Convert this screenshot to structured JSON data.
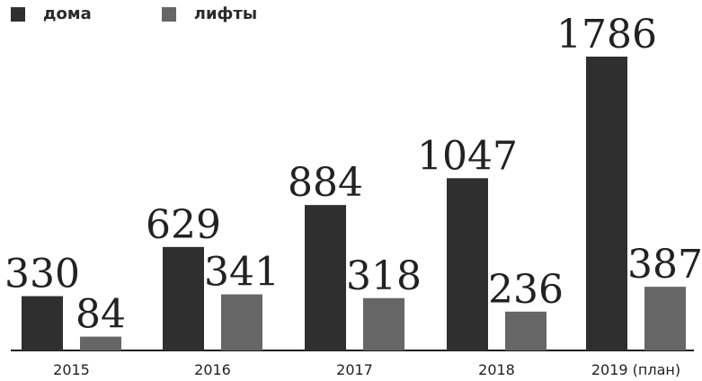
{
  "colors": {
    "houses": "#2f2f2f",
    "lifts": "#666666",
    "axis": "#1f1f1f",
    "text": "#222222"
  },
  "legend": {
    "items": [
      {
        "label": "дома",
        "color": "#2f2f2f"
      },
      {
        "label": "лифты",
        "color": "#666666"
      }
    ]
  },
  "chart_data": {
    "type": "bar",
    "categories": [
      "2015",
      "2016",
      "2017",
      "2018",
      "2019 (план)"
    ],
    "series": [
      {
        "name": "дома",
        "values": [
          330,
          629,
          884,
          1047,
          1786
        ]
      },
      {
        "name": "лифты",
        "values": [
          84,
          341,
          318,
          236,
          387
        ]
      }
    ],
    "title": "",
    "xlabel": "",
    "ylabel": "",
    "ylim": [
      0,
      1786
    ],
    "grid": false,
    "legend_position": "top-left"
  }
}
